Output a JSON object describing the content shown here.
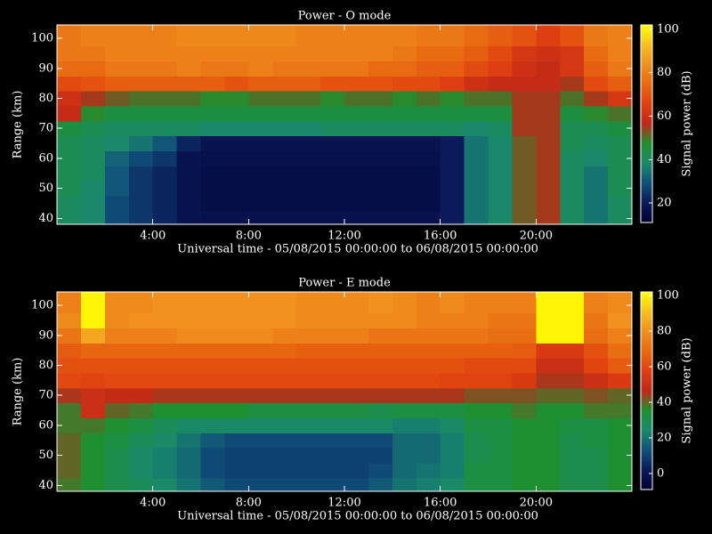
{
  "chart_data": [
    {
      "type": "heatmap",
      "title": "Power - O mode",
      "xlabel": "Universal time - 05/08/2015 00:00:00 to 06/08/2015 00:00:00",
      "ylabel": "Range (km)",
      "colorbar_label": "Signal power (dB)",
      "xlim": [
        0,
        24
      ],
      "ylim": [
        38,
        104.5
      ],
      "clim": [
        11,
        102
      ],
      "xticks": [
        {
          "value": 4,
          "label": "4:00"
        },
        {
          "value": 8,
          "label": "8:00"
        },
        {
          "value": 12,
          "label": "12:00"
        },
        {
          "value": 16,
          "label": "16:00"
        },
        {
          "value": 20,
          "label": "20:00"
        }
      ],
      "yticks": [
        40,
        50,
        60,
        70,
        80,
        90,
        100
      ],
      "cticks": [
        20,
        40,
        60,
        80,
        100
      ],
      "colormap": [
        "#000030",
        "#0a1a5a",
        "#10507a",
        "#1a8a6a",
        "#1e9030",
        "#c02818",
        "#e04010",
        "#e86a10",
        "#f09020",
        "#f8c020",
        "#ffff00"
      ],
      "x_bins": [
        0,
        1,
        2,
        3,
        4,
        5,
        6,
        7,
        8,
        9,
        10,
        11,
        12,
        13,
        14,
        15,
        16,
        17,
        18,
        19,
        20,
        21,
        22,
        23,
        24
      ],
      "y_bins": [
        38,
        42.5,
        47.5,
        52.5,
        57.5,
        62.5,
        67.5,
        72.5,
        77.5,
        82.5,
        87.5,
        92.5,
        97.5,
        104.5
      ],
      "z": [
        [
          40,
          38,
          28,
          25,
          22,
          18,
          17,
          17,
          17,
          17,
          17,
          17,
          17,
          17,
          17,
          17,
          20,
          35,
          38,
          52,
          55,
          40,
          35,
          40
        ],
        [
          40,
          38,
          28,
          25,
          22,
          18,
          16,
          16,
          16,
          16,
          16,
          16,
          16,
          16,
          16,
          16,
          20,
          35,
          38,
          52,
          55,
          40,
          35,
          40
        ],
        [
          42,
          38,
          30,
          25,
          22,
          18,
          16,
          16,
          16,
          16,
          16,
          16,
          16,
          16,
          16,
          16,
          20,
          35,
          38,
          52,
          55,
          40,
          35,
          42
        ],
        [
          42,
          40,
          30,
          25,
          22,
          18,
          16,
          16,
          16,
          16,
          16,
          16,
          16,
          16,
          16,
          16,
          20,
          35,
          38,
          52,
          55,
          40,
          35,
          42
        ],
        [
          42,
          40,
          32,
          28,
          25,
          18,
          17,
          17,
          17,
          17,
          17,
          17,
          17,
          17,
          17,
          17,
          20,
          35,
          38,
          52,
          55,
          40,
          38,
          42
        ],
        [
          42,
          40,
          38,
          35,
          30,
          22,
          18,
          18,
          18,
          18,
          18,
          18,
          18,
          18,
          18,
          18,
          20,
          35,
          38,
          52,
          55,
          42,
          40,
          42
        ],
        [
          45,
          42,
          40,
          40,
          40,
          40,
          38,
          38,
          38,
          38,
          38,
          40,
          40,
          40,
          40,
          40,
          40,
          38,
          40,
          55,
          55,
          42,
          42,
          45
        ],
        [
          58,
          48,
          45,
          45,
          45,
          45,
          45,
          45,
          45,
          45,
          45,
          45,
          45,
          45,
          45,
          45,
          45,
          45,
          45,
          55,
          55,
          45,
          48,
          50
        ],
        [
          60,
          55,
          52,
          50,
          50,
          50,
          48,
          48,
          50,
          50,
          50,
          48,
          50,
          50,
          48,
          50,
          48,
          50,
          50,
          55,
          55,
          50,
          55,
          62
        ],
        [
          68,
          70,
          72,
          72,
          72,
          72,
          72,
          70,
          72,
          72,
          72,
          70,
          70,
          70,
          68,
          68,
          65,
          60,
          58,
          58,
          58,
          55,
          68,
          72
        ],
        [
          75,
          75,
          78,
          78,
          78,
          80,
          78,
          78,
          80,
          78,
          78,
          78,
          78,
          75,
          75,
          72,
          72,
          68,
          65,
          60,
          58,
          62,
          72,
          78
        ],
        [
          78,
          78,
          80,
          80,
          80,
          80,
          80,
          80,
          80,
          80,
          80,
          80,
          80,
          80,
          78,
          75,
          75,
          72,
          68,
          62,
          60,
          62,
          75,
          80
        ],
        [
          78,
          80,
          80,
          80,
          80,
          82,
          82,
          82,
          82,
          82,
          80,
          80,
          80,
          80,
          80,
          78,
          78,
          75,
          72,
          70,
          65,
          70,
          78,
          80
        ]
      ]
    },
    {
      "type": "heatmap",
      "title": "Power - E mode",
      "xlabel": "Universal time - 05/08/2015 00:00:00 to 06/08/2015 00:00:00",
      "ylabel": "Range (km)",
      "colorbar_label": "Signal power (dB)",
      "xlim": [
        0,
        24
      ],
      "ylim": [
        38,
        104.5
      ],
      "clim": [
        -9,
        102
      ],
      "xticks": [
        {
          "value": 4,
          "label": "4:00"
        },
        {
          "value": 8,
          "label": "8:00"
        },
        {
          "value": 12,
          "label": "12:00"
        },
        {
          "value": 16,
          "label": "16:00"
        },
        {
          "value": 20,
          "label": "20:00"
        }
      ],
      "yticks": [
        40,
        50,
        60,
        70,
        80,
        90,
        100
      ],
      "cticks": [
        0,
        20,
        40,
        60,
        80,
        100
      ],
      "colormap": [
        "#000030",
        "#0a1a5a",
        "#10507a",
        "#1a8a6a",
        "#1e9030",
        "#c02818",
        "#e04010",
        "#e86a10",
        "#f09020",
        "#f8c020",
        "#ffff00"
      ],
      "x_bins": [
        0,
        1,
        2,
        3,
        4,
        5,
        6,
        7,
        8,
        9,
        10,
        11,
        12,
        13,
        14,
        15,
        16,
        17,
        18,
        19,
        20,
        21,
        22,
        23,
        24
      ],
      "y_bins": [
        38,
        42.5,
        47.5,
        52.5,
        57.5,
        62.5,
        67.5,
        72.5,
        77.5,
        82.5,
        87.5,
        92.5,
        97.5,
        104.5
      ],
      "z": [
        [
          38,
          35,
          30,
          28,
          25,
          20,
          15,
          12,
          12,
          12,
          12,
          12,
          12,
          15,
          20,
          22,
          25,
          32,
          32,
          35,
          35,
          30,
          30,
          35
        ],
        [
          40,
          35,
          30,
          25,
          22,
          18,
          12,
          10,
          10,
          10,
          10,
          10,
          10,
          12,
          18,
          20,
          22,
          32,
          32,
          35,
          35,
          30,
          30,
          35
        ],
        [
          40,
          35,
          30,
          25,
          22,
          18,
          12,
          10,
          10,
          10,
          10,
          10,
          10,
          10,
          18,
          18,
          22,
          30,
          32,
          35,
          35,
          30,
          30,
          35
        ],
        [
          40,
          35,
          32,
          28,
          25,
          20,
          15,
          12,
          12,
          12,
          12,
          12,
          12,
          12,
          18,
          18,
          22,
          30,
          32,
          35,
          35,
          30,
          32,
          35
        ],
        [
          38,
          38,
          35,
          32,
          28,
          25,
          25,
          25,
          25,
          25,
          25,
          25,
          25,
          25,
          22,
          22,
          25,
          32,
          32,
          35,
          35,
          32,
          32,
          35
        ],
        [
          38,
          50,
          40,
          38,
          35,
          35,
          35,
          35,
          32,
          32,
          32,
          32,
          32,
          30,
          32,
          32,
          32,
          35,
          35,
          38,
          35,
          35,
          38,
          38
        ],
        [
          45,
          50,
          48,
          48,
          45,
          45,
          45,
          45,
          45,
          45,
          45,
          45,
          45,
          45,
          45,
          45,
          45,
          42,
          42,
          42,
          40,
          40,
          42,
          40
        ],
        [
          60,
          58,
          60,
          60,
          60,
          60,
          60,
          60,
          60,
          60,
          60,
          60,
          60,
          60,
          60,
          60,
          58,
          58,
          58,
          55,
          45,
          45,
          50,
          55
        ],
        [
          62,
          62,
          62,
          62,
          62,
          62,
          62,
          62,
          62,
          62,
          62,
          62,
          62,
          62,
          62,
          62,
          62,
          60,
          60,
          60,
          50,
          50,
          58,
          65
        ],
        [
          65,
          68,
          68,
          68,
          68,
          68,
          68,
          68,
          68,
          68,
          66,
          66,
          66,
          66,
          66,
          66,
          66,
          66,
          66,
          65,
          55,
          55,
          62,
          70
        ],
        [
          72,
          85,
          75,
          75,
          75,
          78,
          78,
          78,
          78,
          75,
          75,
          75,
          75,
          72,
          72,
          72,
          72,
          72,
          70,
          70,
          100,
          100,
          70,
          75
        ],
        [
          78,
          100,
          78,
          80,
          80,
          80,
          80,
          80,
          80,
          80,
          78,
          78,
          78,
          78,
          78,
          75,
          75,
          75,
          72,
          72,
          100,
          100,
          72,
          80
        ],
        [
          75,
          100,
          78,
          78,
          80,
          80,
          80,
          80,
          80,
          80,
          78,
          78,
          78,
          80,
          78,
          75,
          78,
          75,
          75,
          75,
          100,
          100,
          75,
          78
        ]
      ]
    }
  ]
}
